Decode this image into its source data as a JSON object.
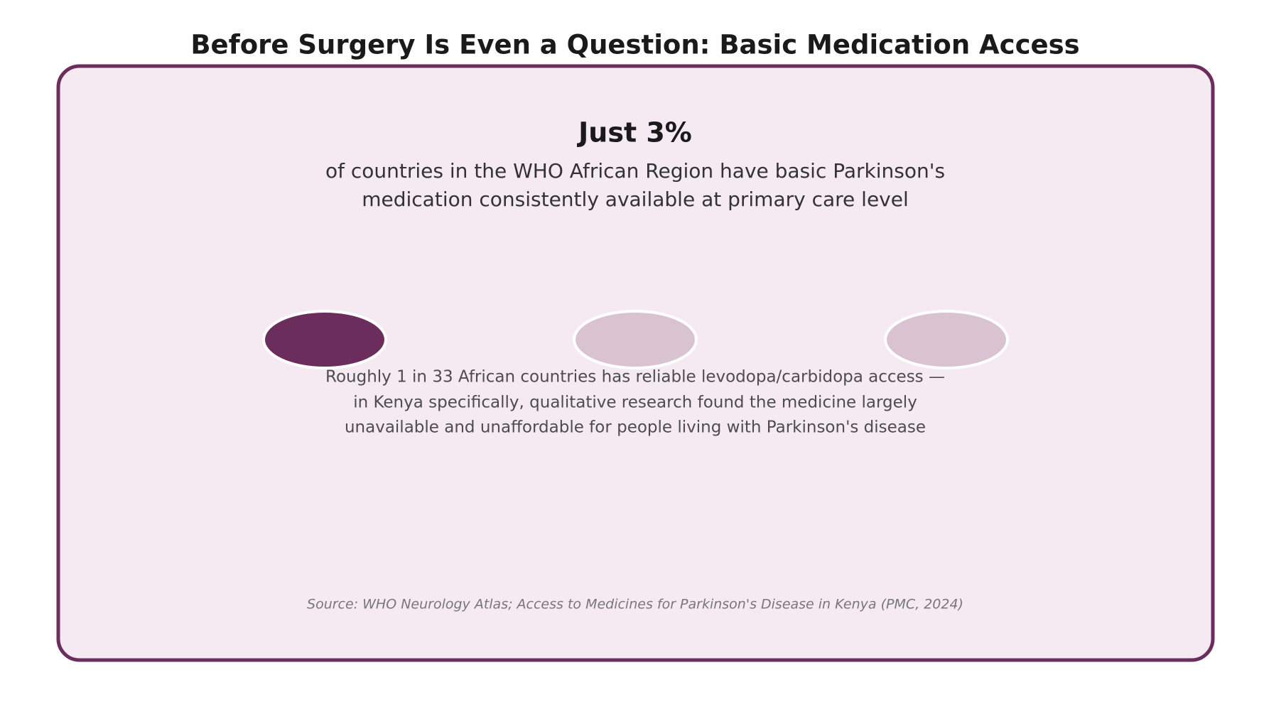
{
  "header": {
    "title": "Before Surgery Is Even a Question: Basic Medication Access"
  },
  "card": {
    "headline": "Just 3%",
    "subtitle": [
      "of countries in the WHO African Region have basic Parkinson's",
      "medication consistently available at primary care level"
    ],
    "description": [
      "Roughly 1 in 33 African countries has reliable levodopa/carbidopa access —",
      "in Kenya specifically, qualitative research found the medicine largely",
      "unavailable and unaffordable for people living with Parkinson's disease"
    ],
    "source": "Source: WHO Neurology Atlas; Access to Medicines for Parkinson's Disease in Kenya (PMC, 2024)"
  }
}
